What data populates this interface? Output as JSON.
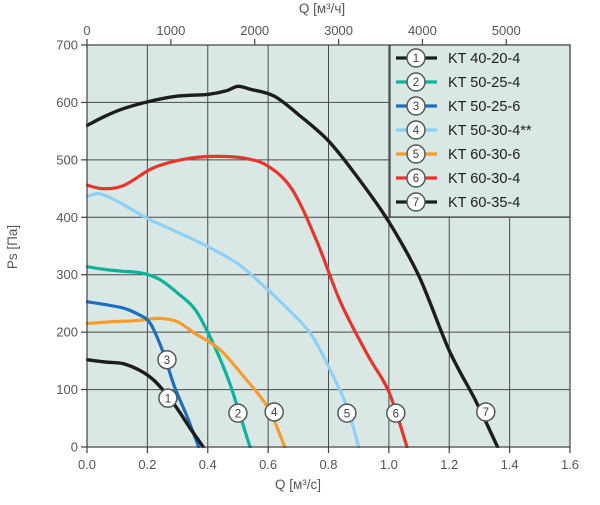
{
  "chart_data": {
    "type": "line",
    "title": "",
    "top_axis": {
      "label": "Q [м³/ч]",
      "ticks": [
        0,
        1000,
        2000,
        3000,
        4000,
        5000
      ],
      "units_per_bottom_unit": 3600
    },
    "bottom_axis": {
      "label": "Q [м³/с]",
      "ticks": [
        "0.0",
        "0.2",
        "0.4",
        "0.6",
        "0.8",
        "1.0",
        "1.2",
        "1.4",
        "1.6"
      ],
      "range": [
        0,
        1.6
      ]
    },
    "left_axis": {
      "label": "Ps [Па]",
      "ticks": [
        0,
        100,
        200,
        300,
        400,
        500,
        600,
        700
      ],
      "range": [
        0,
        700
      ]
    },
    "grid": true,
    "legend_position": "top-right-inside",
    "series": [
      {
        "num": "1",
        "name": "KT 40-20-4",
        "color": "#1d1d1b",
        "points": [
          [
            0,
            152
          ],
          [
            0.06,
            148
          ],
          [
            0.12,
            145
          ],
          [
            0.18,
            132
          ],
          [
            0.22,
            117
          ],
          [
            0.26,
            94
          ],
          [
            0.3,
            66
          ],
          [
            0.34,
            34
          ],
          [
            0.385,
            0
          ]
        ],
        "callout": [
          0.268,
          85
        ]
      },
      {
        "num": "2",
        "name": "KT 50-25-4",
        "color": "#0cb39a",
        "points": [
          [
            0,
            314
          ],
          [
            0.06,
            309
          ],
          [
            0.12,
            306
          ],
          [
            0.18,
            303
          ],
          [
            0.24,
            292
          ],
          [
            0.3,
            268
          ],
          [
            0.36,
            238
          ],
          [
            0.42,
            178
          ],
          [
            0.47,
            115
          ],
          [
            0.51,
            50
          ],
          [
            0.54,
            0
          ]
        ],
        "callout": [
          0.5,
          59
        ]
      },
      {
        "num": "3",
        "name": "KT 50-25-6",
        "color": "#1e6fc0",
        "points": [
          [
            0,
            253
          ],
          [
            0.06,
            248
          ],
          [
            0.12,
            242
          ],
          [
            0.17,
            231
          ],
          [
            0.21,
            215
          ],
          [
            0.25,
            168
          ],
          [
            0.29,
            105
          ],
          [
            0.33,
            55
          ],
          [
            0.37,
            0
          ]
        ],
        "callout": [
          0.265,
          152
        ]
      },
      {
        "num": "4",
        "name": "KT 50-30-4**",
        "color": "#8fd0f5",
        "points": [
          [
            0,
            436
          ],
          [
            0.04,
            441
          ],
          [
            0.1,
            428
          ],
          [
            0.2,
            398
          ],
          [
            0.3,
            374
          ],
          [
            0.4,
            349
          ],
          [
            0.5,
            319
          ],
          [
            0.58,
            283
          ],
          [
            0.66,
            243
          ],
          [
            0.74,
            198
          ],
          [
            0.8,
            140
          ],
          [
            0.86,
            72
          ],
          [
            0.9,
            0
          ]
        ],
        "callout": [
          0.62,
          61
        ]
      },
      {
        "num": "5",
        "name": "KT 60-30-6",
        "color": "#f79c2d",
        "points": [
          [
            0,
            215
          ],
          [
            0.08,
            218
          ],
          [
            0.16,
            220
          ],
          [
            0.24,
            224
          ],
          [
            0.3,
            218
          ],
          [
            0.36,
            197
          ],
          [
            0.44,
            170
          ],
          [
            0.52,
            122
          ],
          [
            0.6,
            68
          ],
          [
            0.655,
            0
          ]
        ],
        "callout": [
          0.861,
          59
        ]
      },
      {
        "num": "6",
        "name": "KT 60-30-4",
        "color": "#e8342c",
        "points": [
          [
            0,
            456
          ],
          [
            0.05,
            450
          ],
          [
            0.12,
            455
          ],
          [
            0.22,
            486
          ],
          [
            0.32,
            501
          ],
          [
            0.42,
            506
          ],
          [
            0.52,
            503
          ],
          [
            0.6,
            489
          ],
          [
            0.68,
            448
          ],
          [
            0.76,
            360
          ],
          [
            0.84,
            252
          ],
          [
            0.93,
            160
          ],
          [
            1.0,
            96
          ],
          [
            1.06,
            0
          ]
        ],
        "callout": [
          1.023,
          59
        ]
      },
      {
        "num": "7",
        "name": "KT 60-35-4",
        "color": "#1d1d1b",
        "points": [
          [
            0,
            560
          ],
          [
            0.06,
            576
          ],
          [
            0.12,
            589
          ],
          [
            0.2,
            601
          ],
          [
            0.3,
            611
          ],
          [
            0.4,
            614
          ],
          [
            0.46,
            620
          ],
          [
            0.5,
            628
          ],
          [
            0.54,
            623
          ],
          [
            0.62,
            611
          ],
          [
            0.7,
            579
          ],
          [
            0.8,
            533
          ],
          [
            0.9,
            467
          ],
          [
            1.0,
            392
          ],
          [
            1.1,
            297
          ],
          [
            1.2,
            168
          ],
          [
            1.29,
            78
          ],
          [
            1.36,
            0
          ]
        ],
        "callout": [
          1.321,
          61
        ]
      }
    ]
  },
  "colors": {
    "plot_background": "#d9e8e4",
    "grid": "#4a4b4d",
    "plot_border": "#3f4041",
    "axis_text": "#55565a",
    "callout_fill": "#ffffff",
    "callout_stroke": "#55565a",
    "callout_text": "#3c3d40",
    "legend_text": "#1d1d1b"
  }
}
